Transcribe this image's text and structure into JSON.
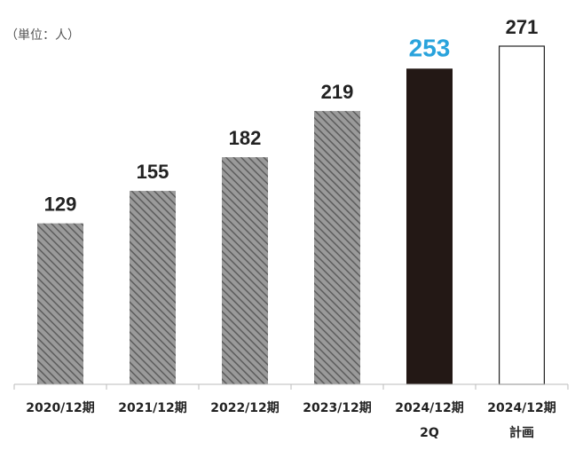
{
  "chart_data": {
    "type": "bar",
    "unit_label": "（単位：人）",
    "categories": [
      [
        "2020/12期"
      ],
      [
        "2021/12期"
      ],
      [
        "2022/12期"
      ],
      [
        "2023/12期"
      ],
      [
        "2024/12期",
        "2Q"
      ],
      [
        "2024/12期",
        "計画"
      ]
    ],
    "values": [
      129,
      155,
      182,
      219,
      253,
      271
    ],
    "value_labels": [
      "129",
      "155",
      "182",
      "219",
      "253",
      "271"
    ],
    "bar_styles": [
      "hatched",
      "hatched",
      "hatched",
      "hatched",
      "solid-dark",
      "outline"
    ],
    "ylim": [
      0,
      271
    ],
    "grid": false,
    "title": "",
    "xlabel": "",
    "ylabel": ""
  },
  "colors": {
    "hatch_fill": "#9a9a9a",
    "hatch_line": "#5c5c5c",
    "solid_dark": "#231815",
    "outline_stroke": "#222222",
    "highlight_label": "#29a3dc",
    "label_default": "#222222",
    "axis": "#bbbbbb"
  }
}
